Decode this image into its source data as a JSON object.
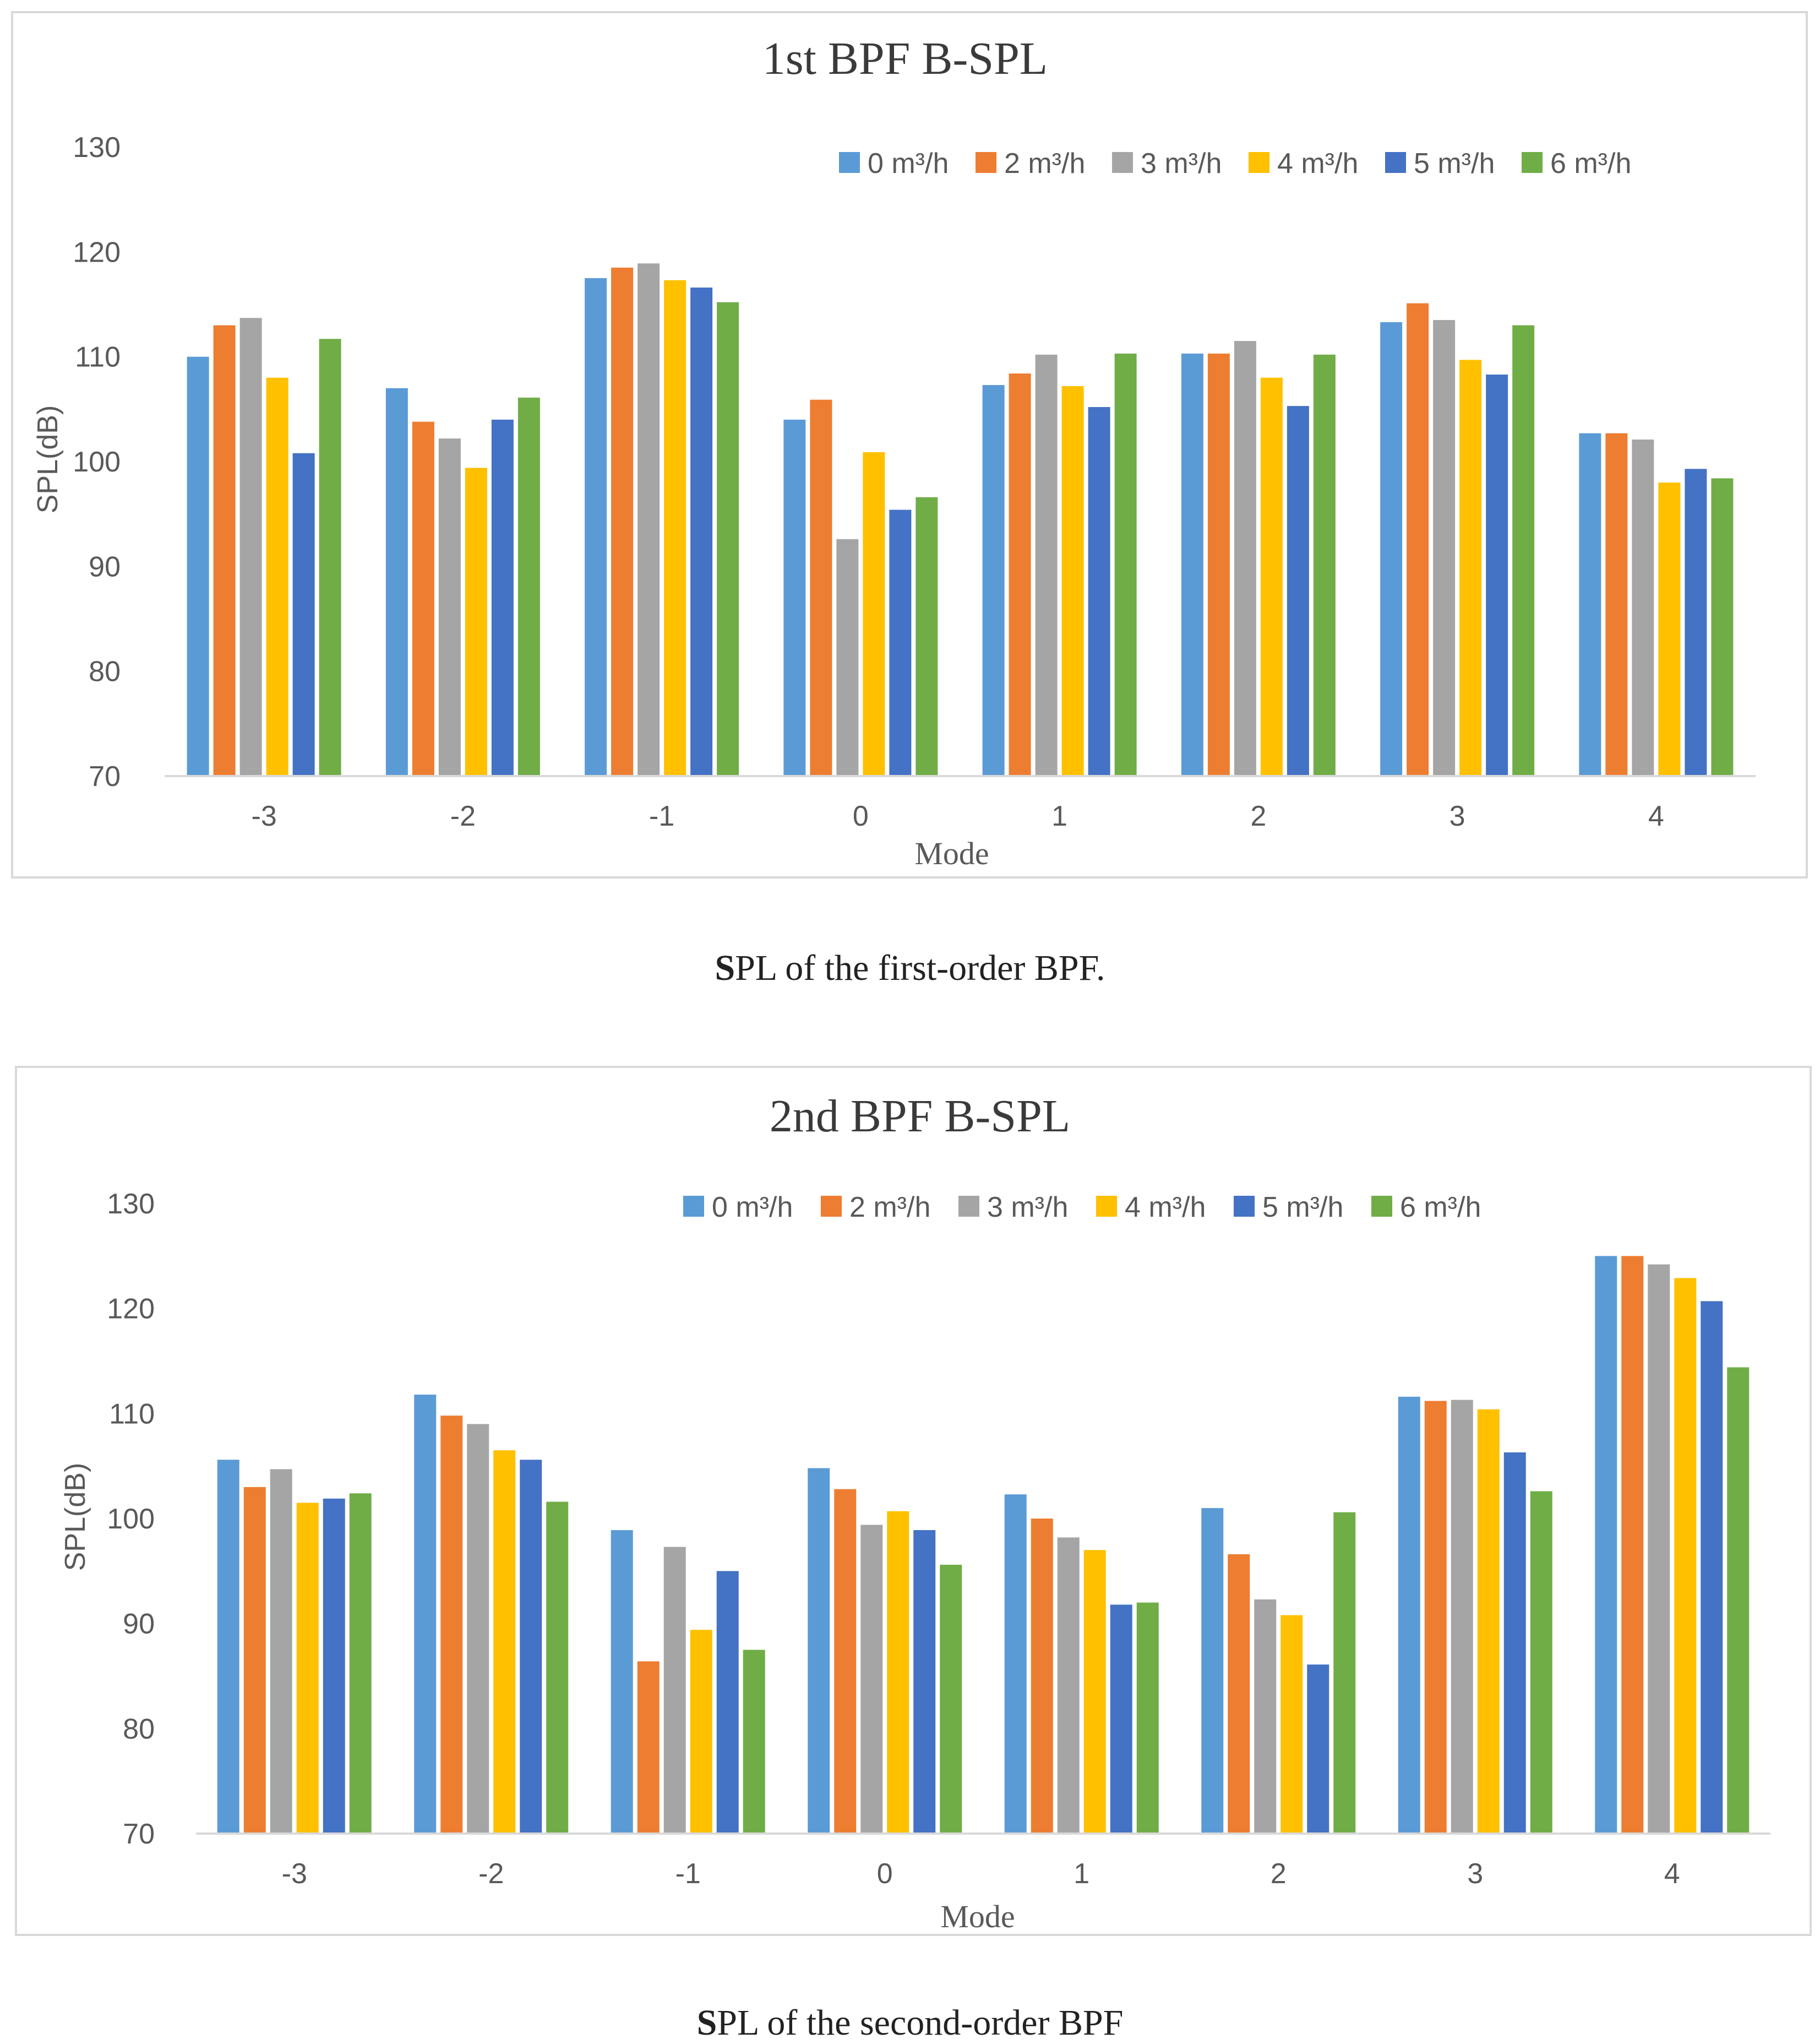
{
  "chart_data": [
    {
      "type": "bar",
      "title": "1st BPF B-SPL",
      "xlabel": "Mode",
      "ylabel": "SPL(dB)",
      "ylim": [
        70,
        130
      ],
      "yticks": [
        "130",
        "120",
        "110",
        "100",
        "90",
        "80",
        "70"
      ],
      "categories": [
        "-3",
        "-2",
        "-1",
        "0",
        "1",
        "2",
        "3",
        "4"
      ],
      "grid": false,
      "legend_position": "top-right",
      "series": [
        {
          "name": "0 m³/h",
          "color": "#5b9bd5",
          "values": [
            110,
            107,
            117.5,
            104,
            107.3,
            110.3,
            113.3,
            102.7
          ]
        },
        {
          "name": "2 m³/h",
          "color": "#ed7d31",
          "values": [
            113,
            103.8,
            118.5,
            105.9,
            108.4,
            110.3,
            115.1,
            102.7
          ]
        },
        {
          "name": "3 m³/h",
          "color": "#a5a5a5",
          "values": [
            113.7,
            102.2,
            118.9,
            92.6,
            110.2,
            111.5,
            113.5,
            102.1
          ]
        },
        {
          "name": "4 m³/h",
          "color": "#ffc000",
          "values": [
            108,
            99.4,
            117.3,
            100.9,
            107.2,
            108,
            109.7,
            98
          ]
        },
        {
          "name": "5 m³/h",
          "color": "#4472c4",
          "values": [
            100.8,
            104,
            116.6,
            95.4,
            105.2,
            105.3,
            108.3,
            99.3
          ]
        },
        {
          "name": "6 m³/h",
          "color": "#70ad47",
          "values": [
            111.7,
            106.1,
            115.2,
            96.6,
            110.3,
            110.2,
            113,
            98.4
          ]
        }
      ]
    },
    {
      "type": "bar",
      "title": "2nd BPF B-SPL",
      "xlabel": "Mode",
      "ylabel": "SPL(dB)",
      "ylim": [
        70,
        130
      ],
      "yticks": [
        "130",
        "120",
        "110",
        "100",
        "90",
        "80",
        "70"
      ],
      "categories": [
        "-3",
        "-2",
        "-1",
        "0",
        "1",
        "2",
        "3",
        "4"
      ],
      "grid": false,
      "legend_position": "top-right",
      "series": [
        {
          "name": "0 m³/h",
          "color": "#5b9bd5",
          "values": [
            105.6,
            111.8,
            98.9,
            104.8,
            102.3,
            101,
            111.6,
            125
          ]
        },
        {
          "name": "2 m³/h",
          "color": "#ed7d31",
          "values": [
            103,
            109.8,
            86.4,
            102.8,
            100,
            96.6,
            111.2,
            125
          ]
        },
        {
          "name": "3 m³/h",
          "color": "#a5a5a5",
          "values": [
            104.7,
            109,
            97.3,
            99.4,
            98.2,
            92.3,
            111.3,
            124.2
          ]
        },
        {
          "name": "4 m³/h",
          "color": "#ffc000",
          "values": [
            101.5,
            106.5,
            89.4,
            100.7,
            97,
            90.8,
            110.4,
            122.9
          ]
        },
        {
          "name": "5 m³/h",
          "color": "#4472c4",
          "values": [
            101.9,
            105.6,
            95,
            98.9,
            91.8,
            86.1,
            106.3,
            120.7
          ]
        },
        {
          "name": "6 m³/h",
          "color": "#70ad47",
          "values": [
            102.4,
            101.6,
            87.5,
            95.6,
            92,
            100.6,
            102.6,
            114.4
          ]
        }
      ]
    }
  ],
  "captions": [
    {
      "bold": "S",
      "rest": "PL of the first-order BPF."
    },
    {
      "bold": "S",
      "rest": "PL of the second-order BPF"
    }
  ]
}
